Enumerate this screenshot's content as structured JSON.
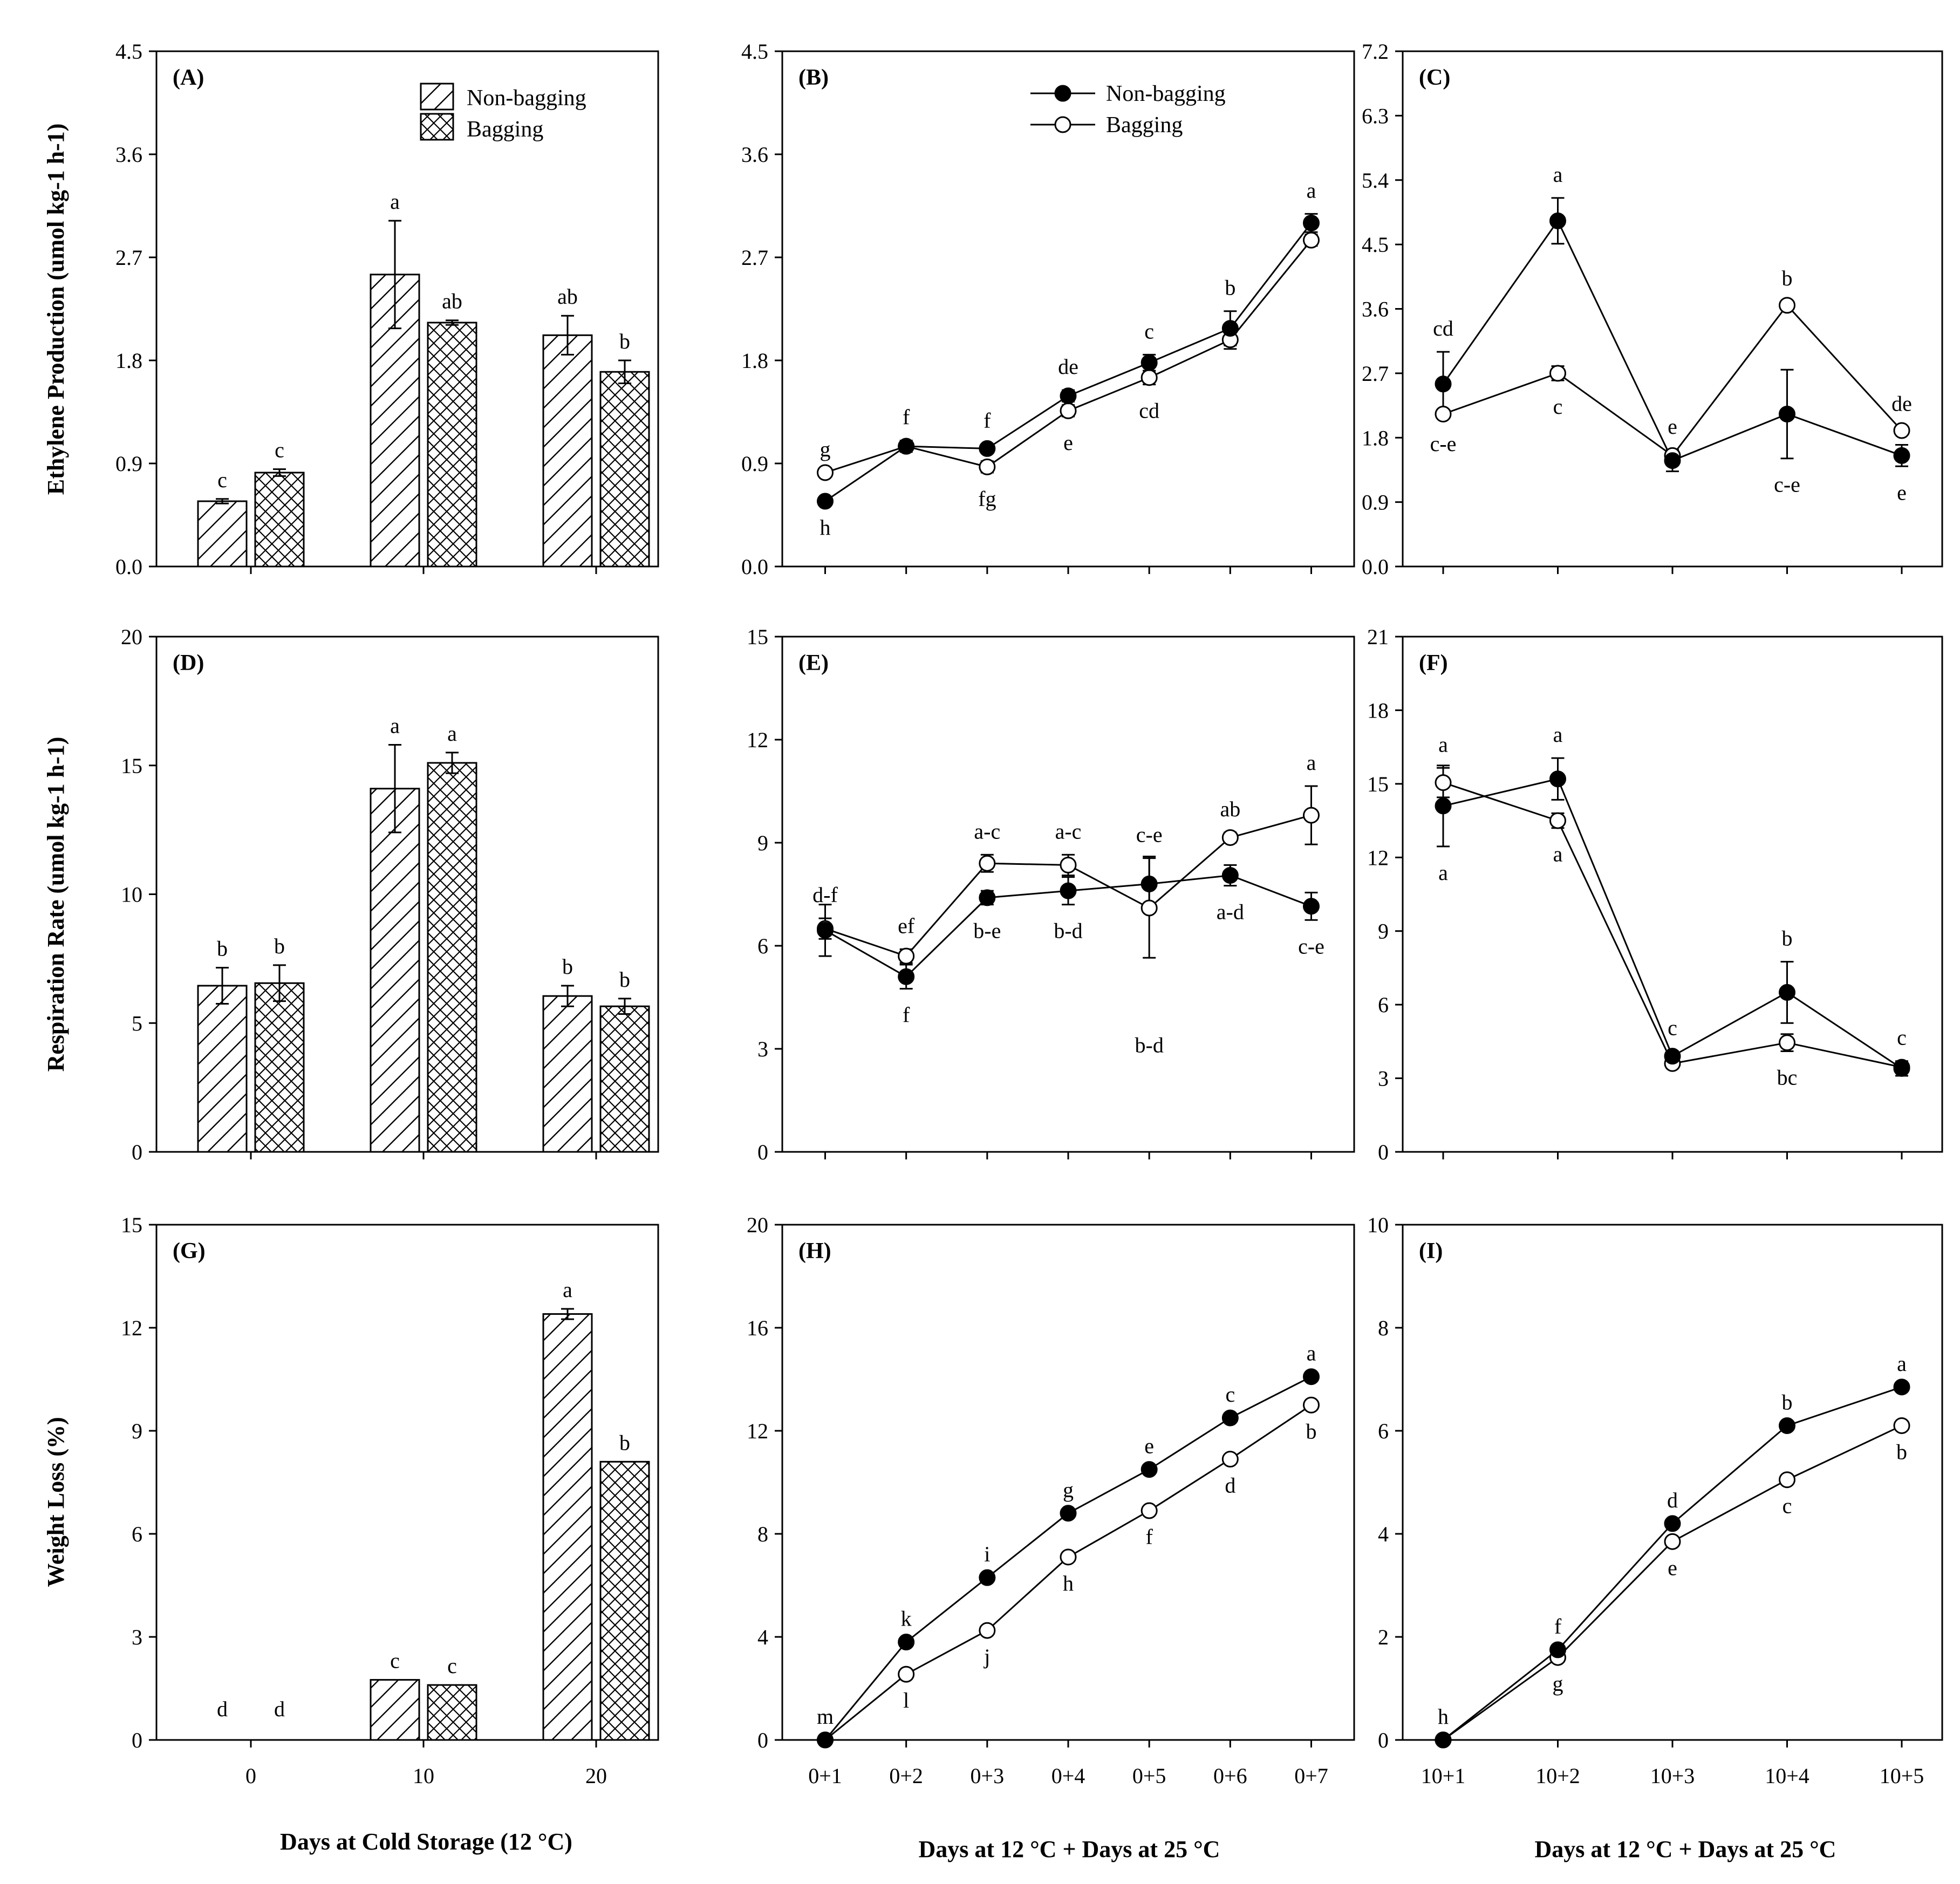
{
  "legend": {
    "series": [
      "Non-bagging",
      "Bagging"
    ]
  },
  "colors": {
    "ink": "#000000",
    "fill": "#ffffff"
  },
  "xlabels": {
    "cold": "Days at Cold Storage (12 °C)",
    "shelf1": "Days at 12 °C + Days at 25 °C",
    "shelf2": "Days at 12 °C + Days at 25 °C"
  },
  "ylabels": {
    "ethylene": "Ethylene Production (umol kg-1 h-1)",
    "respiration": "Respiration Rate (umol kg-1 h-1)",
    "weight": "Weight Loss (%)"
  },
  "chart_data": [
    {
      "id": "A",
      "panel_label": "(A)",
      "type": "bar",
      "categories": [
        "0",
        "10",
        "20"
      ],
      "yticks": [
        "0.0",
        "0.9",
        "1.8",
        "2.7",
        "3.6",
        "4.5"
      ],
      "ylim": [
        0,
        4.5
      ],
      "series": [
        {
          "name": "Non-bagging",
          "values": [
            0.57,
            2.55,
            2.02
          ],
          "errors": [
            0.02,
            0.47,
            0.17
          ],
          "letters": [
            "c",
            "a",
            "ab"
          ]
        },
        {
          "name": "Bagging",
          "values": [
            0.82,
            2.13,
            1.7
          ],
          "errors": [
            0.03,
            0.02,
            0.1
          ],
          "letters": [
            "c",
            "ab",
            "b"
          ]
        }
      ]
    },
    {
      "id": "B",
      "panel_label": "(B)",
      "type": "line",
      "categories": [
        "0+1",
        "0+2",
        "0+3",
        "0+4",
        "0+5",
        "0+6",
        "0+7"
      ],
      "yticks": [
        "0.0",
        "0.9",
        "1.8",
        "2.7",
        "3.6",
        "4.5"
      ],
      "ylim": [
        0,
        4.5
      ],
      "series": [
        {
          "name": "Non-bagging",
          "values": [
            0.57,
            1.05,
            1.03,
            1.49,
            1.78,
            2.08,
            3.0
          ],
          "errors": [
            0,
            0.05,
            0.04,
            0.05,
            0.07,
            0.15,
            0.08
          ],
          "letters": [
            "h",
            "f",
            "f",
            "de",
            "c",
            "b",
            "a"
          ],
          "letter_pos": [
            "below",
            "above",
            "above",
            "above",
            "above",
            "above",
            "above"
          ]
        },
        {
          "name": "Bagging",
          "values": [
            0.82,
            1.05,
            0.87,
            1.36,
            1.65,
            1.98,
            2.85
          ],
          "errors": [
            0,
            0.03,
            0.05,
            0.05,
            0.06,
            0.08,
            0.05
          ],
          "letters": [
            "g",
            "",
            "fg",
            "e",
            "cd",
            "",
            ""
          ],
          "letter_pos": [
            "above",
            "above",
            "below",
            "below",
            "below",
            "below",
            "below"
          ]
        }
      ]
    },
    {
      "id": "C",
      "panel_label": "(C)",
      "type": "line",
      "categories": [
        "10+1",
        "10+2",
        "10+3",
        "10+4",
        "10+5"
      ],
      "yticks": [
        "0.0",
        "0.9",
        "1.8",
        "2.7",
        "3.6",
        "4.5",
        "5.4",
        "6.3",
        "7.2"
      ],
      "ylim": [
        0,
        7.2
      ],
      "series": [
        {
          "name": "Non-bagging",
          "values": [
            2.55,
            4.83,
            1.48,
            2.13,
            1.55
          ],
          "errors": [
            0.45,
            0.32,
            0.15,
            0.62,
            0.15
          ],
          "letters": [
            "cd",
            "a",
            "e",
            "c-e",
            "e"
          ],
          "letter_pos": [
            "above",
            "above",
            "above",
            "below",
            "below"
          ]
        },
        {
          "name": "Bagging",
          "values": [
            2.13,
            2.7,
            1.55,
            3.65,
            1.9
          ],
          "errors": [
            0.05,
            0.1,
            0.05,
            0.05,
            0.05
          ],
          "letters": [
            "c-e",
            "c",
            "",
            "b",
            "de"
          ],
          "letter_pos": [
            "below",
            "below",
            "above",
            "above",
            "above"
          ]
        }
      ]
    },
    {
      "id": "D",
      "panel_label": "(D)",
      "type": "bar",
      "categories": [
        "0",
        "10",
        "20"
      ],
      "yticks": [
        "0",
        "5",
        "10",
        "15",
        "20"
      ],
      "ylim": [
        0,
        20
      ],
      "series": [
        {
          "name": "Non-bagging",
          "values": [
            6.45,
            14.1,
            6.05
          ],
          "errors": [
            0.7,
            1.7,
            0.4
          ],
          "letters": [
            "b",
            "a",
            "b"
          ]
        },
        {
          "name": "Bagging",
          "values": [
            6.55,
            15.1,
            5.65
          ],
          "errors": [
            0.7,
            0.4,
            0.3
          ],
          "letters": [
            "b",
            "a",
            "b"
          ]
        }
      ]
    },
    {
      "id": "E",
      "panel_label": "(E)",
      "type": "line",
      "categories": [
        "0+1",
        "0+2",
        "0+3",
        "0+4",
        "0+5",
        "0+6",
        "0+7"
      ],
      "yticks": [
        "0",
        "3",
        "6",
        "9",
        "12",
        "15"
      ],
      "ylim": [
        0,
        15
      ],
      "series": [
        {
          "name": "Non-bagging",
          "values": [
            6.45,
            5.1,
            7.4,
            7.6,
            7.8,
            8.05,
            7.15
          ],
          "errors": [
            0.75,
            0.35,
            0.2,
            0.4,
            0.8,
            0.3,
            0.4
          ],
          "letters": [
            "",
            "f",
            "b-e",
            "b-d",
            "",
            "a-d",
            "c-e"
          ],
          "letter_pos": [
            "below",
            "below",
            "below",
            "below",
            "below",
            "below",
            "below"
          ]
        },
        {
          "name": "Bagging",
          "values": [
            6.5,
            5.7,
            8.4,
            8.35,
            7.1,
            9.15,
            9.8
          ],
          "errors": [
            0.3,
            0.2,
            0.25,
            0.3,
            1.45,
            0.15,
            0.85
          ],
          "letters": [
            "d-f",
            "ef",
            "a-c",
            "a-c",
            "c-e",
            "ab",
            "a"
          ],
          "letter_pos": [
            "above",
            "above",
            "above",
            "above",
            "above",
            "above",
            "above"
          ]
        }
      ],
      "extra_labels": [
        {
          "text": "b-d",
          "cat": 4,
          "y": 2.9
        }
      ]
    },
    {
      "id": "F",
      "panel_label": "(F)",
      "type": "line",
      "categories": [
        "10+1",
        "10+2",
        "10+3",
        "10+4",
        "10+5"
      ],
      "yticks": [
        "0",
        "3",
        "6",
        "9",
        "12",
        "15",
        "18",
        "21"
      ],
      "ylim": [
        0,
        21
      ],
      "series": [
        {
          "name": "Non-bagging",
          "values": [
            14.1,
            15.2,
            3.9,
            6.5,
            3.4
          ],
          "errors": [
            1.65,
            0.85,
            0.2,
            1.25,
            0.3
          ],
          "letters": [
            "a",
            "a",
            "c",
            "b",
            "c"
          ],
          "letter_pos": [
            "below",
            "above",
            "above",
            "above",
            "above"
          ]
        },
        {
          "name": "Bagging",
          "values": [
            15.05,
            13.5,
            3.6,
            4.45,
            3.45
          ],
          "errors": [
            0.6,
            0.3,
            0.1,
            0.35,
            0.1
          ],
          "letters": [
            "a",
            "a",
            "",
            "bc",
            ""
          ],
          "letter_pos": [
            "above",
            "below",
            "below",
            "below",
            "below"
          ]
        }
      ]
    },
    {
      "id": "G",
      "panel_label": "(G)",
      "type": "bar",
      "categories": [
        "0",
        "10",
        "20"
      ],
      "yticks": [
        "0",
        "3",
        "6",
        "9",
        "12",
        "15"
      ],
      "ylim": [
        0,
        15
      ],
      "series": [
        {
          "name": "Non-bagging",
          "values": [
            0,
            1.75,
            12.4
          ],
          "errors": [
            0,
            0,
            0.15
          ],
          "letters": [
            "d",
            "c",
            "a"
          ]
        },
        {
          "name": "Bagging",
          "values": [
            0,
            1.6,
            8.1
          ],
          "errors": [
            0,
            0,
            0
          ],
          "letters": [
            "d",
            "c",
            "b"
          ]
        }
      ]
    },
    {
      "id": "H",
      "panel_label": "(H)",
      "type": "line",
      "categories": [
        "0+1",
        "0+2",
        "0+3",
        "0+4",
        "0+5",
        "0+6",
        "0+7"
      ],
      "yticks": [
        "0",
        "4",
        "8",
        "12",
        "16",
        "20"
      ],
      "ylim": [
        0,
        20
      ],
      "series": [
        {
          "name": "Non-bagging",
          "values": [
            0,
            3.8,
            6.3,
            8.8,
            10.5,
            12.5,
            14.1
          ],
          "errors": [
            0,
            0,
            0,
            0,
            0,
            0,
            0
          ],
          "letters": [
            "m",
            "k",
            "i",
            "g",
            "e",
            "c",
            "a"
          ],
          "letter_pos": [
            "above",
            "above",
            "above",
            "above",
            "above",
            "above",
            "above"
          ]
        },
        {
          "name": "Bagging",
          "values": [
            0,
            2.55,
            4.25,
            7.1,
            8.9,
            10.9,
            13.0
          ],
          "errors": [
            0,
            0,
            0,
            0,
            0,
            0,
            0
          ],
          "letters": [
            "",
            "l",
            "j",
            "h",
            "f",
            "d",
            "b"
          ],
          "letter_pos": [
            "below",
            "below",
            "below",
            "below",
            "below",
            "below",
            "below"
          ]
        }
      ]
    },
    {
      "id": "I",
      "panel_label": "(I)",
      "type": "line",
      "categories": [
        "10+1",
        "10+2",
        "10+3",
        "10+4",
        "10+5"
      ],
      "yticks": [
        "0",
        "2",
        "4",
        "6",
        "8",
        "10"
      ],
      "ylim": [
        0,
        10
      ],
      "series": [
        {
          "name": "Non-bagging",
          "values": [
            0,
            1.75,
            4.2,
            6.1,
            6.85
          ],
          "errors": [
            0,
            0,
            0,
            0,
            0
          ],
          "letters": [
            "h",
            "f",
            "d",
            "b",
            "a"
          ],
          "letter_pos": [
            "above",
            "above",
            "above",
            "above",
            "above"
          ]
        },
        {
          "name": "Bagging",
          "values": [
            0,
            1.6,
            3.85,
            5.05,
            6.1
          ],
          "errors": [
            0,
            0,
            0,
            0,
            0
          ],
          "letters": [
            "",
            "g",
            "e",
            "c",
            "b"
          ],
          "letter_pos": [
            "below",
            "below",
            "below",
            "below",
            "below"
          ]
        }
      ]
    }
  ]
}
